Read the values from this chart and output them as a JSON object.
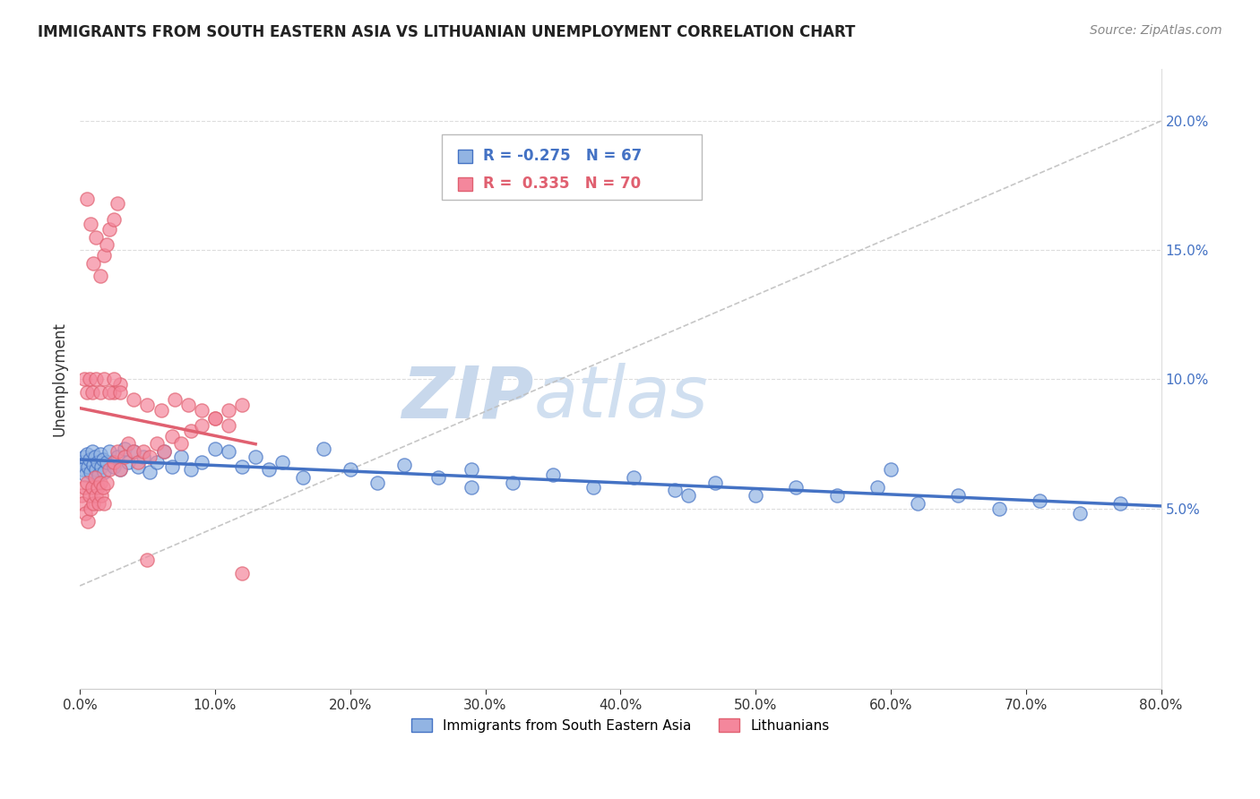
{
  "title": "IMMIGRANTS FROM SOUTH EASTERN ASIA VS LITHUANIAN UNEMPLOYMENT CORRELATION CHART",
  "source": "Source: ZipAtlas.com",
  "ylabel": "Unemployment",
  "right_yticks": [
    "5.0%",
    "10.0%",
    "15.0%",
    "20.0%"
  ],
  "right_ytick_vals": [
    0.05,
    0.1,
    0.15,
    0.2
  ],
  "legend_blue_label": "Immigrants from South Eastern Asia",
  "legend_pink_label": "Lithuanians",
  "blue_color": "#92B4E3",
  "pink_color": "#F4879C",
  "blue_line_color": "#4472C4",
  "pink_line_color": "#E06070",
  "trend_line_color": "#C0C0C0",
  "background_color": "#FFFFFF",
  "xlim": [
    0.0,
    0.8
  ],
  "ylim": [
    -0.02,
    0.22
  ],
  "blue_scatter_x": [
    0.001,
    0.002,
    0.003,
    0.004,
    0.005,
    0.006,
    0.007,
    0.008,
    0.009,
    0.01,
    0.011,
    0.012,
    0.013,
    0.014,
    0.015,
    0.016,
    0.017,
    0.018,
    0.02,
    0.022,
    0.025,
    0.028,
    0.03,
    0.033,
    0.036,
    0.04,
    0.043,
    0.047,
    0.052,
    0.057,
    0.062,
    0.068,
    0.075,
    0.082,
    0.09,
    0.1,
    0.11,
    0.12,
    0.13,
    0.14,
    0.15,
    0.165,
    0.18,
    0.2,
    0.22,
    0.24,
    0.265,
    0.29,
    0.32,
    0.35,
    0.38,
    0.41,
    0.44,
    0.47,
    0.5,
    0.53,
    0.56,
    0.59,
    0.62,
    0.65,
    0.68,
    0.71,
    0.74,
    0.77,
    0.29,
    0.45,
    0.6
  ],
  "blue_scatter_y": [
    0.068,
    0.065,
    0.07,
    0.063,
    0.071,
    0.066,
    0.069,
    0.064,
    0.072,
    0.067,
    0.07,
    0.065,
    0.068,
    0.063,
    0.071,
    0.066,
    0.069,
    0.064,
    0.068,
    0.072,
    0.066,
    0.07,
    0.065,
    0.073,
    0.068,
    0.072,
    0.066,
    0.07,
    0.064,
    0.068,
    0.072,
    0.066,
    0.07,
    0.065,
    0.068,
    0.073,
    0.072,
    0.066,
    0.07,
    0.065,
    0.068,
    0.062,
    0.073,
    0.065,
    0.06,
    0.067,
    0.062,
    0.065,
    0.06,
    0.063,
    0.058,
    0.062,
    0.057,
    0.06,
    0.055,
    0.058,
    0.055,
    0.058,
    0.052,
    0.055,
    0.05,
    0.053,
    0.048,
    0.052,
    0.058,
    0.055,
    0.065
  ],
  "pink_scatter_x": [
    0.001,
    0.002,
    0.003,
    0.004,
    0.005,
    0.006,
    0.007,
    0.008,
    0.009,
    0.01,
    0.011,
    0.012,
    0.013,
    0.014,
    0.015,
    0.016,
    0.017,
    0.018,
    0.02,
    0.022,
    0.025,
    0.028,
    0.03,
    0.033,
    0.036,
    0.04,
    0.043,
    0.047,
    0.052,
    0.057,
    0.062,
    0.068,
    0.075,
    0.082,
    0.09,
    0.1,
    0.11,
    0.12,
    0.025,
    0.03,
    0.005,
    0.008,
    0.01,
    0.012,
    0.015,
    0.018,
    0.02,
    0.022,
    0.025,
    0.028,
    0.003,
    0.005,
    0.007,
    0.009,
    0.012,
    0.015,
    0.018,
    0.022,
    0.025,
    0.03,
    0.04,
    0.05,
    0.06,
    0.07,
    0.08,
    0.09,
    0.1,
    0.11,
    0.05,
    0.12
  ],
  "pink_scatter_y": [
    0.055,
    0.052,
    0.058,
    0.048,
    0.06,
    0.045,
    0.055,
    0.05,
    0.058,
    0.052,
    0.062,
    0.055,
    0.058,
    0.052,
    0.06,
    0.055,
    0.058,
    0.052,
    0.06,
    0.065,
    0.068,
    0.072,
    0.065,
    0.07,
    0.075,
    0.072,
    0.068,
    0.072,
    0.07,
    0.075,
    0.072,
    0.078,
    0.075,
    0.08,
    0.082,
    0.085,
    0.088,
    0.09,
    0.095,
    0.098,
    0.17,
    0.16,
    0.145,
    0.155,
    0.14,
    0.148,
    0.152,
    0.158,
    0.162,
    0.168,
    0.1,
    0.095,
    0.1,
    0.095,
    0.1,
    0.095,
    0.1,
    0.095,
    0.1,
    0.095,
    0.092,
    0.09,
    0.088,
    0.092,
    0.09,
    0.088,
    0.085,
    0.082,
    0.03,
    0.025
  ]
}
